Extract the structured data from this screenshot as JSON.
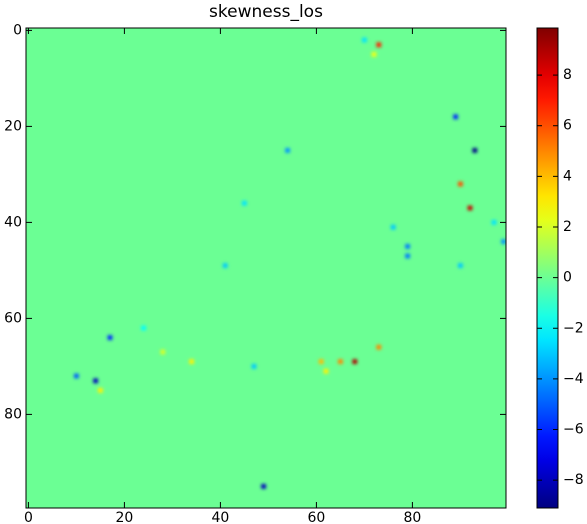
{
  "chart_data": {
    "type": "heatmap",
    "title": "skewness_los",
    "xlim": [
      -0.5,
      99.5
    ],
    "ylim": [
      -0.5,
      99.5
    ],
    "y_inverted": true,
    "xticks": [
      0,
      20,
      40,
      60,
      80
    ],
    "yticks": [
      0,
      20,
      40,
      60,
      80
    ],
    "colormap": "jet",
    "clim": [
      -9.1,
      9.86
    ],
    "colorbar_ticks": [
      {
        "value": -8,
        "label": "−8"
      },
      {
        "value": -6,
        "label": "−6"
      },
      {
        "value": -4,
        "label": "−4"
      },
      {
        "value": -2,
        "label": "−2"
      },
      0,
      2,
      4,
      6,
      8
    ],
    "background_value": 0,
    "x": [
      93,
      49,
      14,
      68,
      92,
      73,
      90,
      73,
      61,
      65,
      34,
      15,
      89,
      79,
      79,
      10,
      17,
      54,
      41,
      45,
      99,
      90,
      47,
      62,
      28,
      76,
      70,
      72,
      24,
      97
    ],
    "y": [
      25,
      95,
      73,
      69,
      37,
      3,
      32,
      66,
      69,
      69,
      69,
      75,
      18,
      45,
      47,
      72,
      64,
      25,
      49,
      36,
      44,
      49,
      70,
      71,
      67,
      41,
      2,
      5,
      62,
      40
    ],
    "values": [
      -9,
      -8,
      -8,
      9,
      8.5,
      7,
      6,
      5,
      4,
      5,
      3,
      3,
      -6,
      -4.5,
      -4.5,
      -5,
      -6,
      -4,
      -3,
      -2.5,
      -4,
      -3,
      -3,
      3,
      2,
      -3,
      -2.5,
      2.5,
      -2,
      -2.5
    ]
  }
}
